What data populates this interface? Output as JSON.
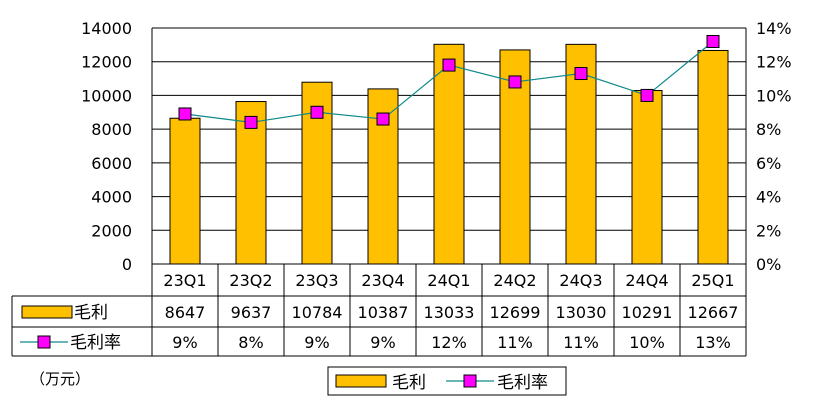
{
  "chart_data": {
    "type": "bar",
    "categories": [
      "23Q1",
      "23Q2",
      "23Q3",
      "23Q4",
      "24Q1",
      "24Q2",
      "24Q3",
      "24Q4",
      "25Q1"
    ],
    "series": [
      {
        "name": "毛利",
        "type": "bar",
        "axis": "left",
        "color": "#FFC000",
        "values": [
          8647,
          9637,
          10784,
          10387,
          13033,
          12699,
          13030,
          10291,
          12667
        ]
      },
      {
        "name": "毛利率",
        "type": "line",
        "axis": "right",
        "color": "#FF00FF",
        "line_color": "#0E8A8C",
        "values": [
          8.9,
          8.4,
          9.0,
          8.6,
          11.8,
          10.8,
          11.3,
          10.0,
          13.2
        ],
        "table_labels": [
          "9%",
          "8%",
          "9%",
          "9%",
          "12%",
          "11%",
          "11%",
          "10%",
          "13%"
        ]
      }
    ],
    "left_axis": {
      "ylim": [
        0,
        14000
      ],
      "ticks": [
        "0",
        "2000",
        "4000",
        "6000",
        "8000",
        "10000",
        "12000",
        "14000"
      ]
    },
    "right_axis": {
      "ylim": [
        0,
        14
      ],
      "ticks": [
        "0%",
        "2%",
        "4%",
        "6%",
        "8%",
        "10%",
        "12%",
        "14%"
      ]
    },
    "grid": true,
    "data_table": true,
    "legend_position": "bottom",
    "unit_note": "（万元）"
  }
}
